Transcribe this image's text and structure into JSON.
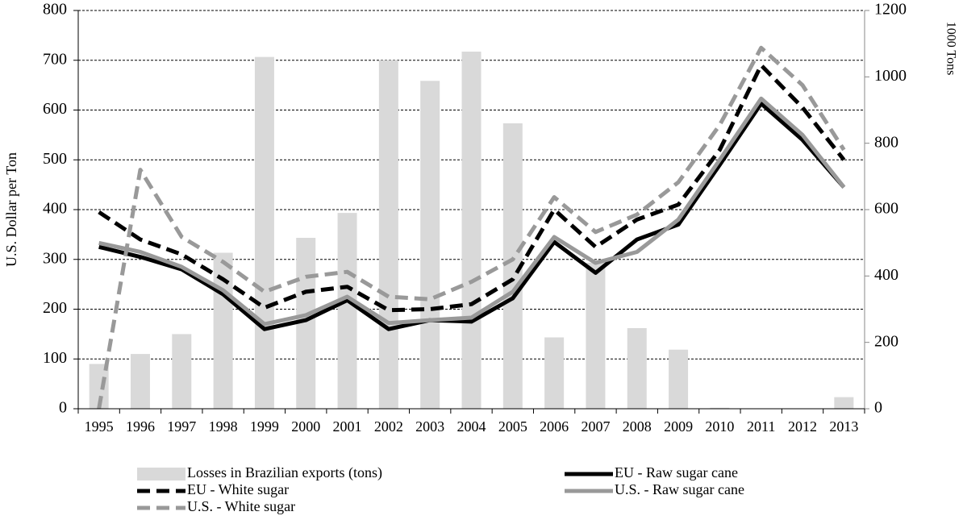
{
  "chart_data": {
    "type": "combo",
    "y_label": "U.S. Dollar per Ton",
    "y2_label": "1000 Tons",
    "categories": [
      "1995",
      "1996",
      "1997",
      "1998",
      "1999",
      "2000",
      "2001",
      "2002",
      "2003",
      "2004",
      "2005",
      "2006",
      "2007",
      "2008",
      "2009",
      "2010",
      "2011",
      "2012",
      "2013"
    ],
    "ylim": [
      0,
      800
    ],
    "yticks": [
      0,
      100,
      200,
      300,
      400,
      500,
      600,
      700,
      800
    ],
    "y2lim": [
      0,
      1200
    ],
    "y2ticks": [
      0,
      200,
      400,
      600,
      800,
      1000,
      1200
    ],
    "grid": true,
    "legend": "bottom",
    "series": [
      {
        "name": "Losses in Brazilian exports (tons)",
        "type": "bar",
        "axis": "y2",
        "color": "#d9d9d9",
        "values": [
          135,
          165,
          225,
          470,
          1060,
          515,
          590,
          1050,
          988,
          1076,
          860,
          215,
          440,
          243,
          178,
          3,
          0,
          0,
          35
        ]
      },
      {
        "name": "EU - Raw sugar cane",
        "type": "line",
        "color": "#000000",
        "dashed": false,
        "values": [
          325,
          305,
          280,
          230,
          160,
          178,
          218,
          160,
          178,
          175,
          222,
          335,
          273,
          340,
          370,
          490,
          613,
          540,
          445
        ]
      },
      {
        "name": "EU - White sugar",
        "type": "line",
        "color": "#000000",
        "dashed": true,
        "values": [
          395,
          340,
          310,
          260,
          203,
          235,
          245,
          198,
          200,
          210,
          260,
          400,
          325,
          380,
          410,
          520,
          690,
          605,
          500
        ]
      },
      {
        "name": "U.S. - Raw sugar cane",
        "type": "line",
        "color": "#999999",
        "dashed": false,
        "values": [
          333,
          315,
          285,
          238,
          170,
          188,
          225,
          172,
          178,
          183,
          235,
          345,
          293,
          315,
          380,
          500,
          623,
          550,
          445
        ]
      },
      {
        "name": "U.S. - White sugar",
        "type": "line",
        "color": "#999999",
        "dashed": true,
        "values": [
          0,
          480,
          345,
          295,
          235,
          265,
          275,
          225,
          220,
          255,
          300,
          425,
          355,
          390,
          455,
          570,
          725,
          650,
          520
        ]
      }
    ]
  }
}
